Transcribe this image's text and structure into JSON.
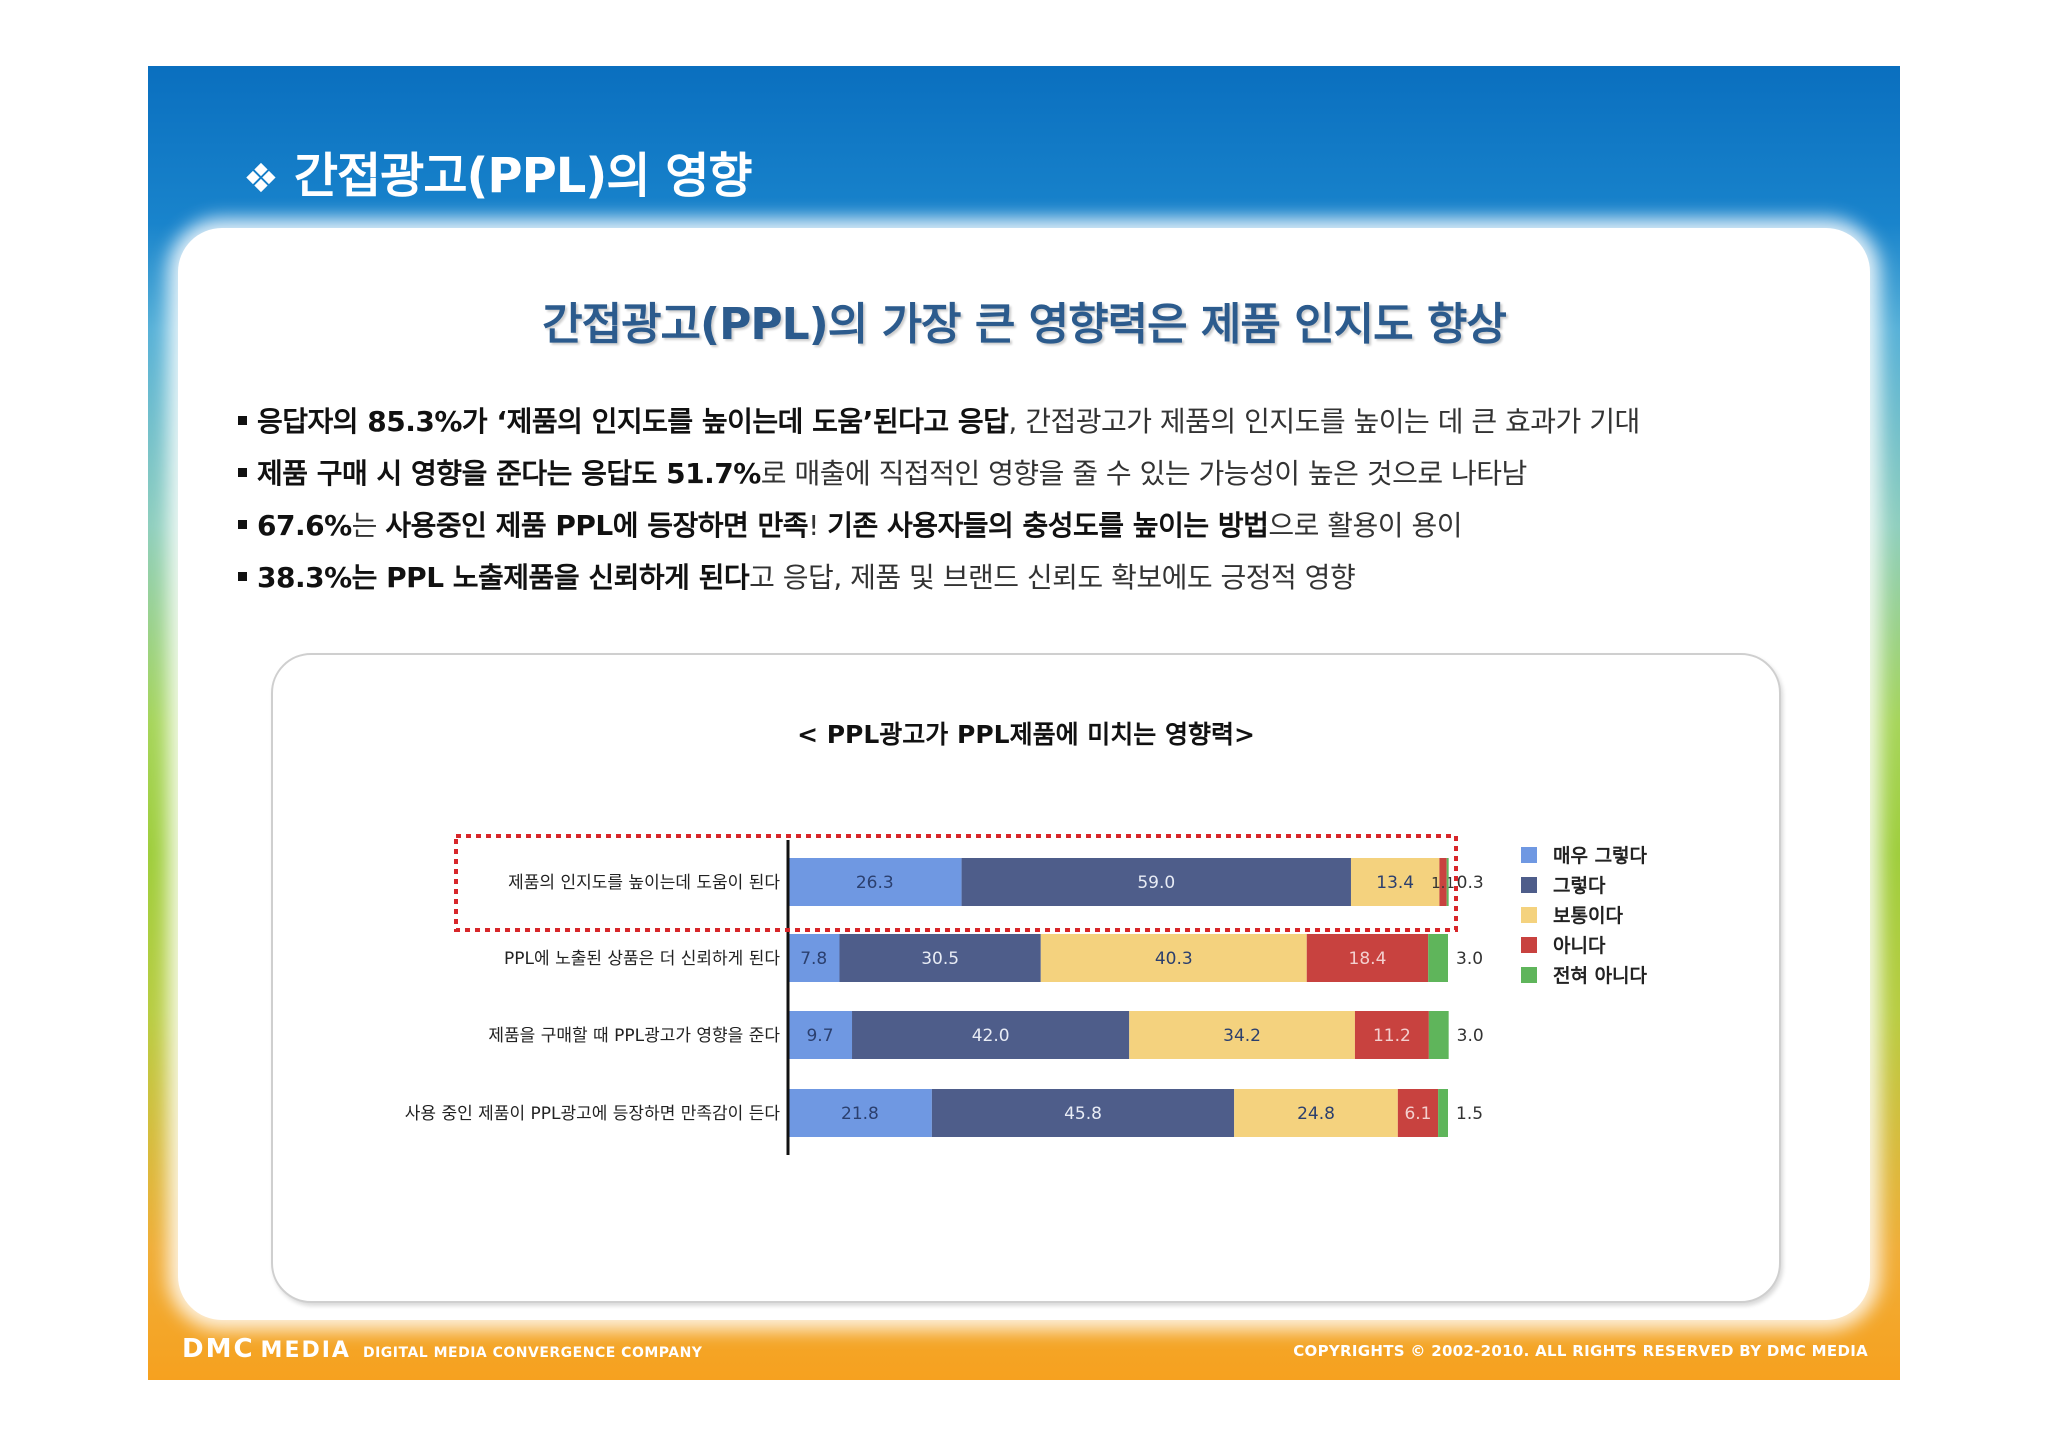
{
  "slide": {
    "title_bullet": "❖",
    "title": "간접광고(PPL)의 영향",
    "headline": "간접광고(PPL)의 가장 큰 영향력은 제품 인지도 향상",
    "bullets": [
      {
        "bold": "응답자의 85.3%가 ‘제품의 인지도를 높이는데 도움’된다고 응답",
        "rest": ", 간접광고가 제품의 인지도를 높이는 데 큰 효과가 기대"
      },
      {
        "bold": "제품 구매 시 영향을 준다는 응답도 51.7%",
        "rest": "로 매출에 직접적인 영향을 줄 수 있는 가능성이 높은 것으로 나타남"
      },
      {
        "bold": "67.6%",
        "mid": "는 ",
        "bold2": "사용중인 제품 PPL에 등장하면 만족",
        "mid2": "! ",
        "bold3": "기존 사용자들의 충성도를 높이는 방법",
        "rest": "으로 활용이 용이"
      },
      {
        "bold": "38.3%는 PPL 노출제품을 신뢰하게 된다",
        "rest": "고 응답, 제품 및 브랜드 신뢰도 확보에도 긍정적 영향"
      }
    ]
  },
  "footer": {
    "brand": "DMC",
    "media": "MEDIA",
    "tagline": "DIGITAL MEDIA CONVERGENCE COMPANY",
    "copyright": "COPYRIGHTS © 2002-2010. ALL RIGHTS RESERVED BY DMC MEDIA"
  },
  "chart_data": {
    "type": "bar",
    "orientation": "horizontal",
    "stacked": true,
    "title": "< PPL광고가 PPL제품에 미치는 영향력>",
    "categories": [
      "제품의 인지도를 높이는데 도움이 된다",
      "PPL에 노출된 상품은 더 신뢰하게 된다",
      "제품을 구매할 때 PPL광고가 영향을 준다",
      "사용 중인 제품이 PPL광고에 등장하면 만족감이 든다"
    ],
    "series": [
      {
        "name": "매우 그렇다",
        "color": "#6f98e2",
        "values": [
          26.3,
          7.8,
          9.7,
          21.8
        ]
      },
      {
        "name": "그렇다",
        "color": "#4e5d8a",
        "values": [
          59.0,
          30.5,
          42.0,
          45.8
        ]
      },
      {
        "name": "보통이다",
        "color": "#f4d27e",
        "values": [
          13.4,
          40.3,
          34.2,
          24.8
        ]
      },
      {
        "name": "아니다",
        "color": "#c8423f",
        "values": [
          1.1,
          18.4,
          11.2,
          6.1
        ]
      },
      {
        "name": "전혀 아니다",
        "color": "#5fb55b",
        "values": [
          0.3,
          3.0,
          3.0,
          1.5
        ]
      }
    ],
    "value_labels": [
      [
        "26.3",
        "59.0",
        "13.4",
        "1.1",
        "0.3"
      ],
      [
        "7.8",
        "30.5",
        "40.3",
        "18.4",
        "3.0"
      ],
      [
        "9.7",
        "42.0",
        "34.2",
        "11.2",
        "3.0"
      ],
      [
        "21.8",
        "45.8",
        "24.8",
        "6.1",
        "1.5"
      ]
    ],
    "highlighted_category": "제품의 인지도를 높이는데 도움이 된다",
    "legend_position": "right",
    "grid": false
  }
}
